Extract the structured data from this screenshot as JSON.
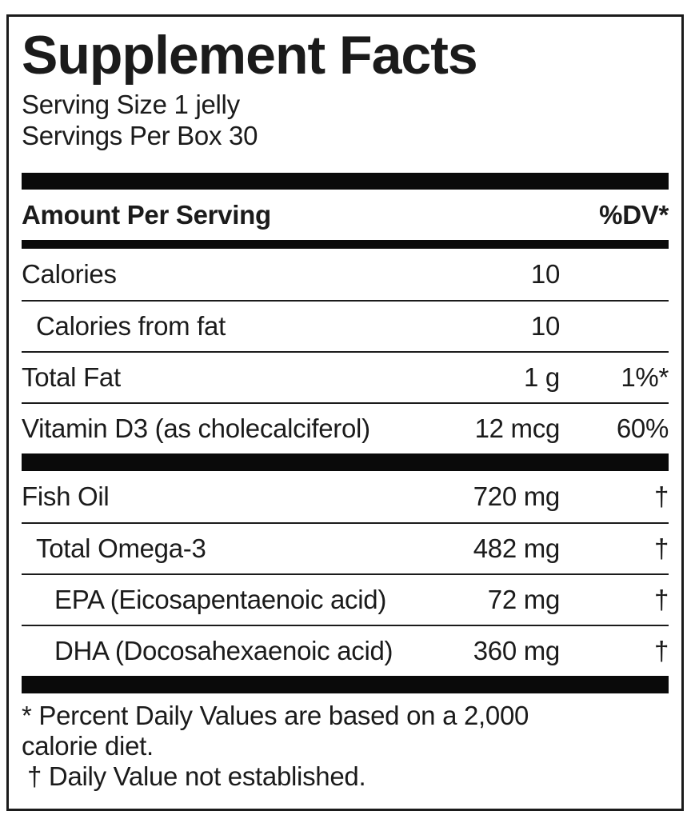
{
  "colors": {
    "text": "#1b1b1b",
    "bar": "#0a0a0a",
    "background": "#ffffff"
  },
  "panel": {
    "title": "Supplement Facts",
    "serving_size": "Serving Size 1 jelly",
    "servings_per_box": "Servings Per Box 30",
    "columns": {
      "amount_header": "Amount Per Serving",
      "dv_header": "%DV*"
    },
    "rows": [
      {
        "name": "Calories",
        "amount": "10",
        "dv": ""
      },
      {
        "name": "Calories from fat",
        "amount": "10",
        "dv": ""
      },
      {
        "name": "Total Fat",
        "amount": "1 g",
        "dv": "1%*"
      },
      {
        "name": "Vitamin D3 (as cholecalciferol)",
        "amount": "12 mcg",
        "dv": "60%"
      },
      {
        "name": "Fish Oil",
        "amount": "720 mg",
        "dv": "†"
      },
      {
        "name": "Total Omega-3",
        "amount": "482 mg",
        "dv": "†"
      },
      {
        "name": "EPA (Eicosapentaenoic acid)",
        "amount": "72 mg",
        "dv": "†"
      },
      {
        "name": "DHA (Docosahexaenoic acid)",
        "amount": "360 mg",
        "dv": "†"
      }
    ],
    "footnotes": {
      "line1": "* Percent Daily Values are based on a 2,000",
      "line2": "calorie diet.",
      "line3": "† Daily Value not established."
    }
  }
}
